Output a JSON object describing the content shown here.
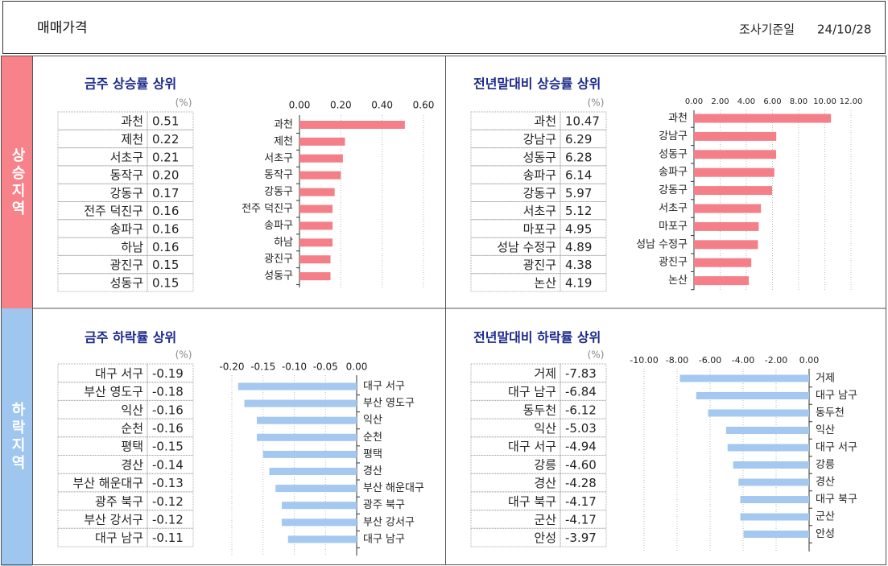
{
  "header": {
    "title": "매매가격",
    "date_label": "조사기준일",
    "date": "24/10/28"
  },
  "regions": [
    "상승지역",
    "하락지역"
  ],
  "chart_data": [
    {
      "type": "bar",
      "orientation": "horizontal",
      "title": "금주 상승률 상위",
      "unit": "(%)",
      "color": "#f47f88",
      "grid": true,
      "categories": [
        "과천",
        "제천",
        "서초구",
        "동작구",
        "강동구",
        "전주 덕진구",
        "송파구",
        "하남",
        "광진구",
        "성동구"
      ],
      "values": [
        0.51,
        0.22,
        0.21,
        0.2,
        0.17,
        0.16,
        0.16,
        0.16,
        0.15,
        0.15
      ],
      "value_labels": [
        "0.51",
        "0.22",
        "0.21",
        "0.20",
        "0.17",
        "0.16",
        "0.16",
        "0.16",
        "0.15",
        "0.15"
      ],
      "xlim": [
        0,
        0.6
      ],
      "xticks": [
        {
          "value": 0,
          "label": "0.00"
        },
        {
          "value": 0.2,
          "label": "0.20"
        },
        {
          "value": 0.4,
          "label": "0.40"
        },
        {
          "value": 0.6,
          "label": "0.60"
        }
      ]
    },
    {
      "type": "bar",
      "orientation": "horizontal",
      "title": "전년말대비 상승률 상위",
      "unit": "(%)",
      "color": "#f47f88",
      "grid": true,
      "categories": [
        "과천",
        "강남구",
        "성동구",
        "송파구",
        "강동구",
        "서초구",
        "마포구",
        "성남 수정구",
        "광진구",
        "논산"
      ],
      "values": [
        10.47,
        6.29,
        6.28,
        6.14,
        5.97,
        5.12,
        4.95,
        4.89,
        4.38,
        4.19
      ],
      "value_labels": [
        "10.47",
        "6.29",
        "6.28",
        "6.14",
        "5.97",
        "5.12",
        "4.95",
        "4.89",
        "4.38",
        "4.19"
      ],
      "xlim": [
        0,
        12
      ],
      "xticks": [
        {
          "value": 0,
          "label": "0.00"
        },
        {
          "value": 2,
          "label": "2.00"
        },
        {
          "value": 4,
          "label": "4.00"
        },
        {
          "value": 6,
          "label": "6.00"
        },
        {
          "value": 8,
          "label": "8.00"
        },
        {
          "value": 10,
          "label": "10.00"
        },
        {
          "value": 12,
          "label": "12.00"
        }
      ]
    },
    {
      "type": "bar",
      "orientation": "horizontal",
      "title": "금주 하락률 상위",
      "unit": "(%)",
      "color": "#a4c8ef",
      "grid": true,
      "categories": [
        "대구 서구",
        "부산 영도구",
        "익산",
        "순천",
        "평택",
        "경산",
        "부산 해운대구",
        "광주 북구",
        "부산 강서구",
        "대구 남구"
      ],
      "values": [
        -0.19,
        -0.18,
        -0.16,
        -0.16,
        -0.15,
        -0.14,
        -0.13,
        -0.12,
        -0.12,
        -0.11
      ],
      "value_labels": [
        "-0.19",
        "-0.18",
        "-0.16",
        "-0.16",
        "-0.15",
        "-0.14",
        "-0.13",
        "-0.12",
        "-0.12",
        "-0.11"
      ],
      "xlim": [
        -0.2,
        0
      ],
      "xticks": [
        {
          "value": -0.2,
          "label": "-0.20"
        },
        {
          "value": -0.15,
          "label": "-0.15"
        },
        {
          "value": -0.1,
          "label": "-0.10"
        },
        {
          "value": -0.05,
          "label": "-0.05"
        },
        {
          "value": 0,
          "label": "0.00"
        }
      ]
    },
    {
      "type": "bar",
      "orientation": "horizontal",
      "title": "전년말대비 하락률 상위",
      "unit": "(%)",
      "color": "#a4c8ef",
      "grid": true,
      "categories": [
        "거제",
        "대구 남구",
        "동두천",
        "익산",
        "대구 서구",
        "강릉",
        "경산",
        "대구 북구",
        "군산",
        "안성"
      ],
      "values": [
        -7.83,
        -6.84,
        -6.12,
        -5.03,
        -4.94,
        -4.6,
        -4.28,
        -4.17,
        -4.17,
        -3.97
      ],
      "value_labels": [
        "-7.83",
        "-6.84",
        "-6.12",
        "-5.03",
        "-4.94",
        "-4.60",
        "-4.28",
        "-4.17",
        "-4.17",
        "-3.97"
      ],
      "xlim": [
        -10,
        0
      ],
      "xticks": [
        {
          "value": -10,
          "label": "-10.00"
        },
        {
          "value": -8,
          "label": "-8.00"
        },
        {
          "value": -6,
          "label": "-6.00"
        },
        {
          "value": -4,
          "label": "-4.00"
        },
        {
          "value": -2,
          "label": "-2.00"
        },
        {
          "value": 0,
          "label": "0.00"
        }
      ]
    }
  ]
}
